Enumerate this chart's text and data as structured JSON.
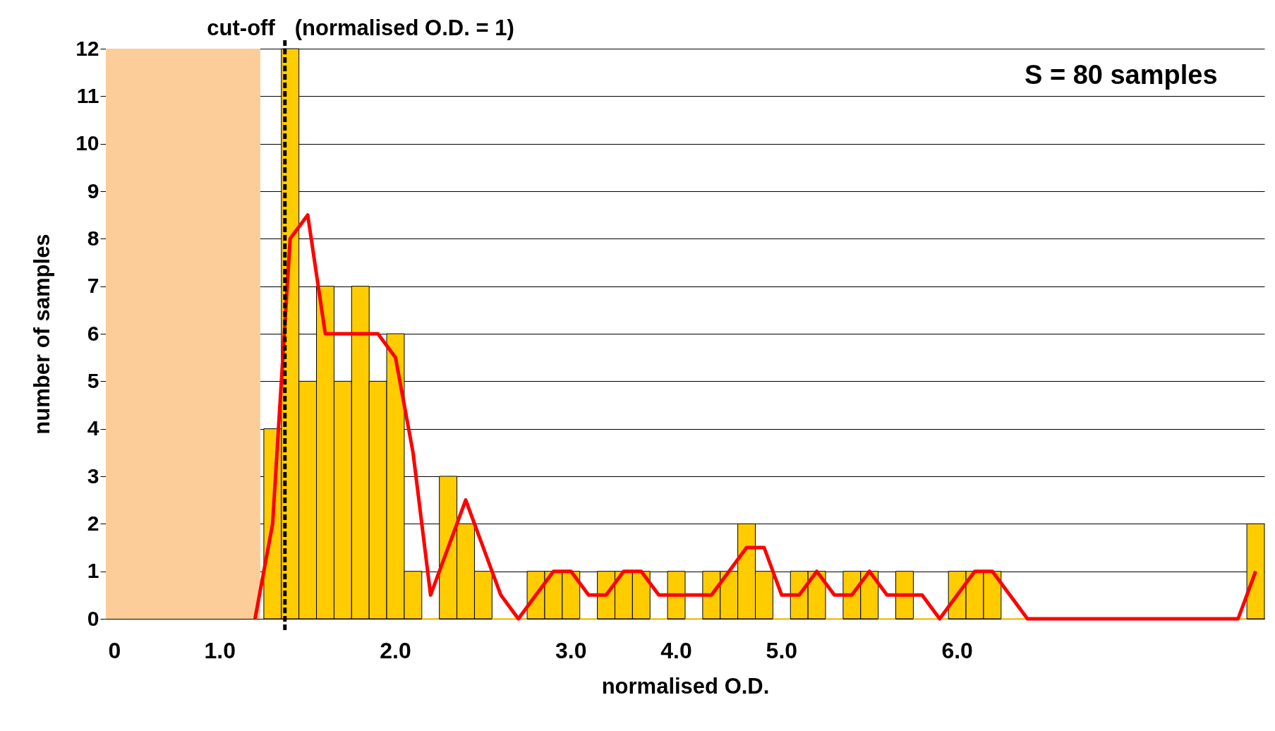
{
  "chart_data": {
    "type": "bar",
    "xlabel": "normalised O.D.",
    "ylabel": "number of samples",
    "categories": [
      "0",
      null,
      null,
      null,
      null,
      null,
      "1.0",
      null,
      null,
      null,
      null,
      null,
      null,
      null,
      null,
      null,
      "2.0",
      null,
      null,
      null,
      null,
      null,
      null,
      null,
      null,
      null,
      "3.0",
      null,
      null,
      null,
      null,
      null,
      "4.0",
      null,
      null,
      null,
      null,
      null,
      "5.0",
      null,
      null,
      null,
      null,
      null,
      null,
      null,
      null,
      null,
      "6.0",
      null,
      null,
      null,
      null,
      null,
      null,
      null,
      null,
      null,
      null,
      null,
      null,
      null,
      null,
      null,
      null,
      null
    ],
    "series": [
      {
        "color": "#ffcc00",
        "values": [
          null,
          null,
          null,
          null,
          null,
          null,
          null,
          null,
          null,
          4,
          12,
          5,
          7,
          5,
          7,
          5,
          6,
          1,
          0,
          3,
          2,
          1,
          0,
          0,
          1,
          1,
          1,
          0,
          1,
          1,
          1,
          0,
          1,
          0,
          1,
          1,
          2,
          1,
          0,
          1,
          1,
          0,
          1,
          1,
          0,
          1,
          0,
          0,
          1,
          1,
          1,
          0,
          0,
          0,
          0,
          0,
          0,
          0,
          0,
          0,
          0,
          0,
          0,
          0,
          0,
          2
        ]
      },
      {
        "type": "line",
        "color": "#ff0000",
        "values": [
          null,
          null,
          null,
          null,
          null,
          null,
          null,
          null,
          0,
          2,
          8,
          8.5,
          6,
          6,
          6,
          6,
          5.5,
          3.5,
          0.5,
          1.5,
          2.5,
          1.5,
          0.5,
          0,
          0.5,
          1,
          1,
          0.5,
          0.5,
          1,
          1,
          0.5,
          0.5,
          0.5,
          0.5,
          1,
          1.5,
          1.5,
          0.5,
          0.5,
          1,
          0.5,
          0.5,
          1,
          0.5,
          0.5,
          0.5,
          0,
          0.5,
          1,
          1,
          0.5,
          0,
          0,
          0,
          0,
          0,
          0,
          0,
          0,
          0,
          0,
          0,
          0,
          0,
          1
        ]
      }
    ],
    "ylim": [
      0,
      12
    ],
    "yticks": [
      0,
      1,
      2,
      3,
      4,
      5,
      6,
      7,
      8,
      9,
      10,
      11,
      12
    ],
    "grid": "y",
    "annotations": [
      "cut-off",
      "(normalised O.D. = 1)",
      "S = 80 samples"
    ]
  }
}
